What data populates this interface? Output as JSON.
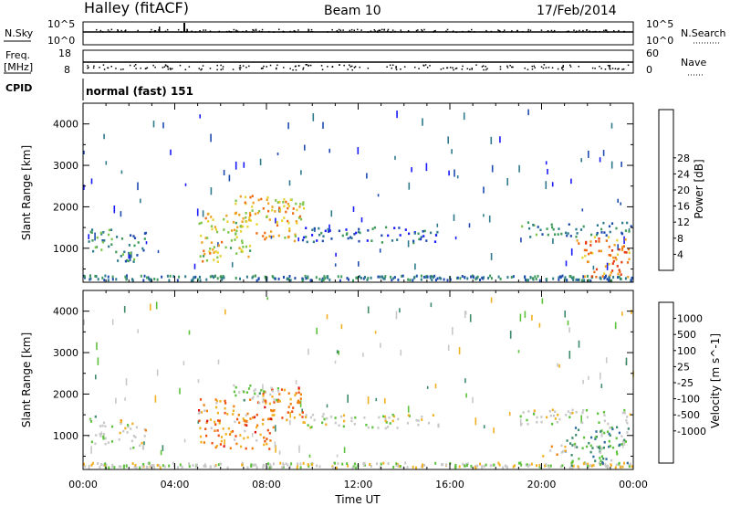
{
  "header": {
    "station": "Halley (fitACF)",
    "beam": "Beam 10",
    "date": "17/Feb/2014"
  },
  "top_panels": {
    "nsky": {
      "left_label": "N.Sky",
      "right_label": "N.Search",
      "left_ticks": [
        "10^5",
        "10^0"
      ],
      "right_ticks": [
        "10^5",
        "10^0"
      ]
    },
    "freq": {
      "left_label_line1": "Freq.",
      "left_label_line2": "[MHz]",
      "right_label": "Nave",
      "left_ticks": [
        "18",
        "8"
      ],
      "right_ticks": [
        "60",
        "0"
      ]
    },
    "cpid": {
      "label": "CPID",
      "value": "normal (fast) 151"
    }
  },
  "chart_data": [
    {
      "type": "heatmap",
      "name": "power",
      "ylabel": "Slant Range [km]",
      "ylim": [
        180,
        4500
      ],
      "yticks": [
        1000,
        2000,
        3000,
        4000
      ],
      "xlim": [
        0,
        24
      ],
      "colorbar": {
        "label": "Power [dB]",
        "ticks": [
          "4",
          "8",
          "12",
          "16",
          "20",
          "24",
          "28"
        ],
        "colors": [
          "#1a1aff",
          "#1e4bb0",
          "#2e7a8c",
          "#3d9a5a",
          "#7cc44a",
          "#e6d230",
          "#f0a020",
          "#ee6a10",
          "#e83a10",
          "#e01010"
        ]
      },
      "regions": [
        {
          "x0": 0.2,
          "x1": 1.3,
          "y0": 800,
          "y1": 1500,
          "level": 0.35
        },
        {
          "x0": 1.4,
          "x1": 2.7,
          "y0": 700,
          "y1": 1400,
          "level": 0.3
        },
        {
          "x0": 5.0,
          "x1": 7.3,
          "y0": 700,
          "y1": 1900,
          "level": 0.55
        },
        {
          "x0": 6.6,
          "x1": 9.6,
          "y0": 1200,
          "y1": 2300,
          "level": 0.6
        },
        {
          "x0": 9.5,
          "x1": 15.5,
          "y0": 1150,
          "y1": 1550,
          "level": 0.2
        },
        {
          "x0": 19.0,
          "x1": 23.9,
          "y0": 1300,
          "y1": 1650,
          "level": 0.3
        },
        {
          "x0": 21.5,
          "x1": 23.8,
          "y0": 300,
          "y1": 1300,
          "level": 0.7
        }
      ]
    },
    {
      "type": "heatmap",
      "name": "velocity",
      "ylabel": "Slant Range [km]",
      "xlabel": "Time UT",
      "ylim": [
        180,
        4500
      ],
      "yticks": [
        1000,
        2000,
        3000,
        4000
      ],
      "xlim": [
        0,
        24
      ],
      "xticks": [
        "00:00",
        "04:00",
        "08:00",
        "12:00",
        "16:00",
        "20:00",
        "00:00"
      ],
      "xtick_values": [
        0,
        4,
        8,
        12,
        16,
        20,
        24
      ],
      "colorbar": {
        "label": "Velocity [m s^-1]",
        "ticks": [
          "1000",
          "500",
          "100",
          "25",
          "-25",
          "-100",
          "-500",
          "-1000"
        ],
        "colors": [
          "#1a44cc",
          "#2e6aa0",
          "#3c8a6a",
          "#5cc23c",
          "#c8c8c8",
          "#c8c8c8",
          "#f0b020",
          "#f08010",
          "#ee5010",
          "#e01010"
        ]
      },
      "regions": [
        {
          "x0": 0.2,
          "x1": 1.3,
          "y0": 800,
          "y1": 1500,
          "level": 0.45
        },
        {
          "x0": 1.4,
          "x1": 2.7,
          "y0": 700,
          "y1": 1400,
          "level": 0.55
        },
        {
          "x0": 5.0,
          "x1": 8.3,
          "y0": 700,
          "y1": 1900,
          "level": 0.75
        },
        {
          "x0": 7.8,
          "x1": 9.6,
          "y0": 1300,
          "y1": 2200,
          "level": 0.75
        },
        {
          "x0": 6.5,
          "x1": 8.5,
          "y0": 1800,
          "y1": 2300,
          "level": 0.4
        },
        {
          "x0": 9.5,
          "x1": 15.5,
          "y0": 1200,
          "y1": 1550,
          "level": 0.48
        },
        {
          "x0": 19.0,
          "x1": 23.9,
          "y0": 1300,
          "y1": 1650,
          "level": 0.48
        },
        {
          "x0": 21.0,
          "x1": 23.8,
          "y0": 300,
          "y1": 1300,
          "level": 0.3
        },
        {
          "x0": 20.0,
          "x1": 21.0,
          "y0": 500,
          "y1": 800,
          "level": 0.65
        }
      ]
    }
  ]
}
